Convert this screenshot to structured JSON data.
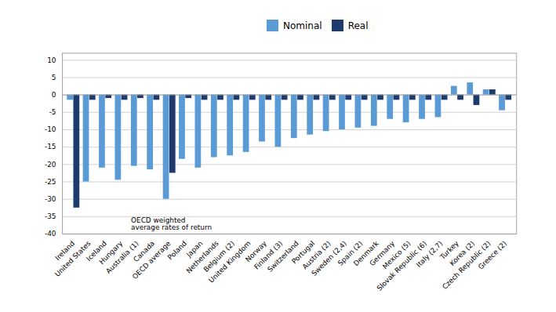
{
  "chart_data": {
    "type": "bar",
    "categories": [
      "Ireland",
      "United States",
      "Iceland",
      "Hungary",
      "Australia (1)",
      "Canada",
      "OECD average",
      "Poland",
      "Japan",
      "Netherlands",
      "Belgium (2)",
      "United Kingdom",
      "Norway",
      "Finland (3)",
      "Switzerland",
      "Portugal",
      "Austria (2)",
      "Sweden (2,4)",
      "Spain (2)",
      "Denmark",
      "Germany",
      "Mexico (5)",
      "Slovak Republic (6)",
      "Italy (2,7)",
      "Turkey",
      "Korea (2)",
      "Czech Republic (2)",
      "Greece (2)"
    ],
    "series": [
      {
        "name": "Nominal",
        "color": "#5B9BD5",
        "values": [
          -1.5,
          -25.0,
          -21.0,
          -24.5,
          -20.5,
          -21.5,
          -30.0,
          -18.5,
          -21.0,
          -18.0,
          -17.5,
          -16.5,
          -13.5,
          -15.0,
          -12.5,
          -11.5,
          -10.5,
          -10.0,
          -9.5,
          -9.0,
          -7.0,
          -8.0,
          -7.0,
          -6.5,
          2.5,
          3.5,
          1.5,
          -4.5
        ]
      },
      {
        "name": "Real",
        "color": "#1F3B6E",
        "values": [
          -32.5,
          -1.5,
          -1.0,
          -1.5,
          -1.0,
          -1.5,
          -22.5,
          -1.0,
          -1.5,
          -1.5,
          -1.5,
          -1.5,
          -1.5,
          -1.5,
          -1.5,
          -1.5,
          -1.5,
          -1.5,
          -1.5,
          -1.5,
          -1.5,
          -1.5,
          -1.5,
          -1.5,
          -1.5,
          -3.0,
          1.5,
          -1.5
        ]
      }
    ],
    "ylim": [
      -40,
      12
    ],
    "yticks": [
      -40,
      -35,
      -30,
      -25,
      -20,
      -15,
      -10,
      -5,
      0,
      5,
      10
    ],
    "grid": true,
    "legend": "top",
    "annotation": "OECD weighted\naverage rates of return"
  }
}
